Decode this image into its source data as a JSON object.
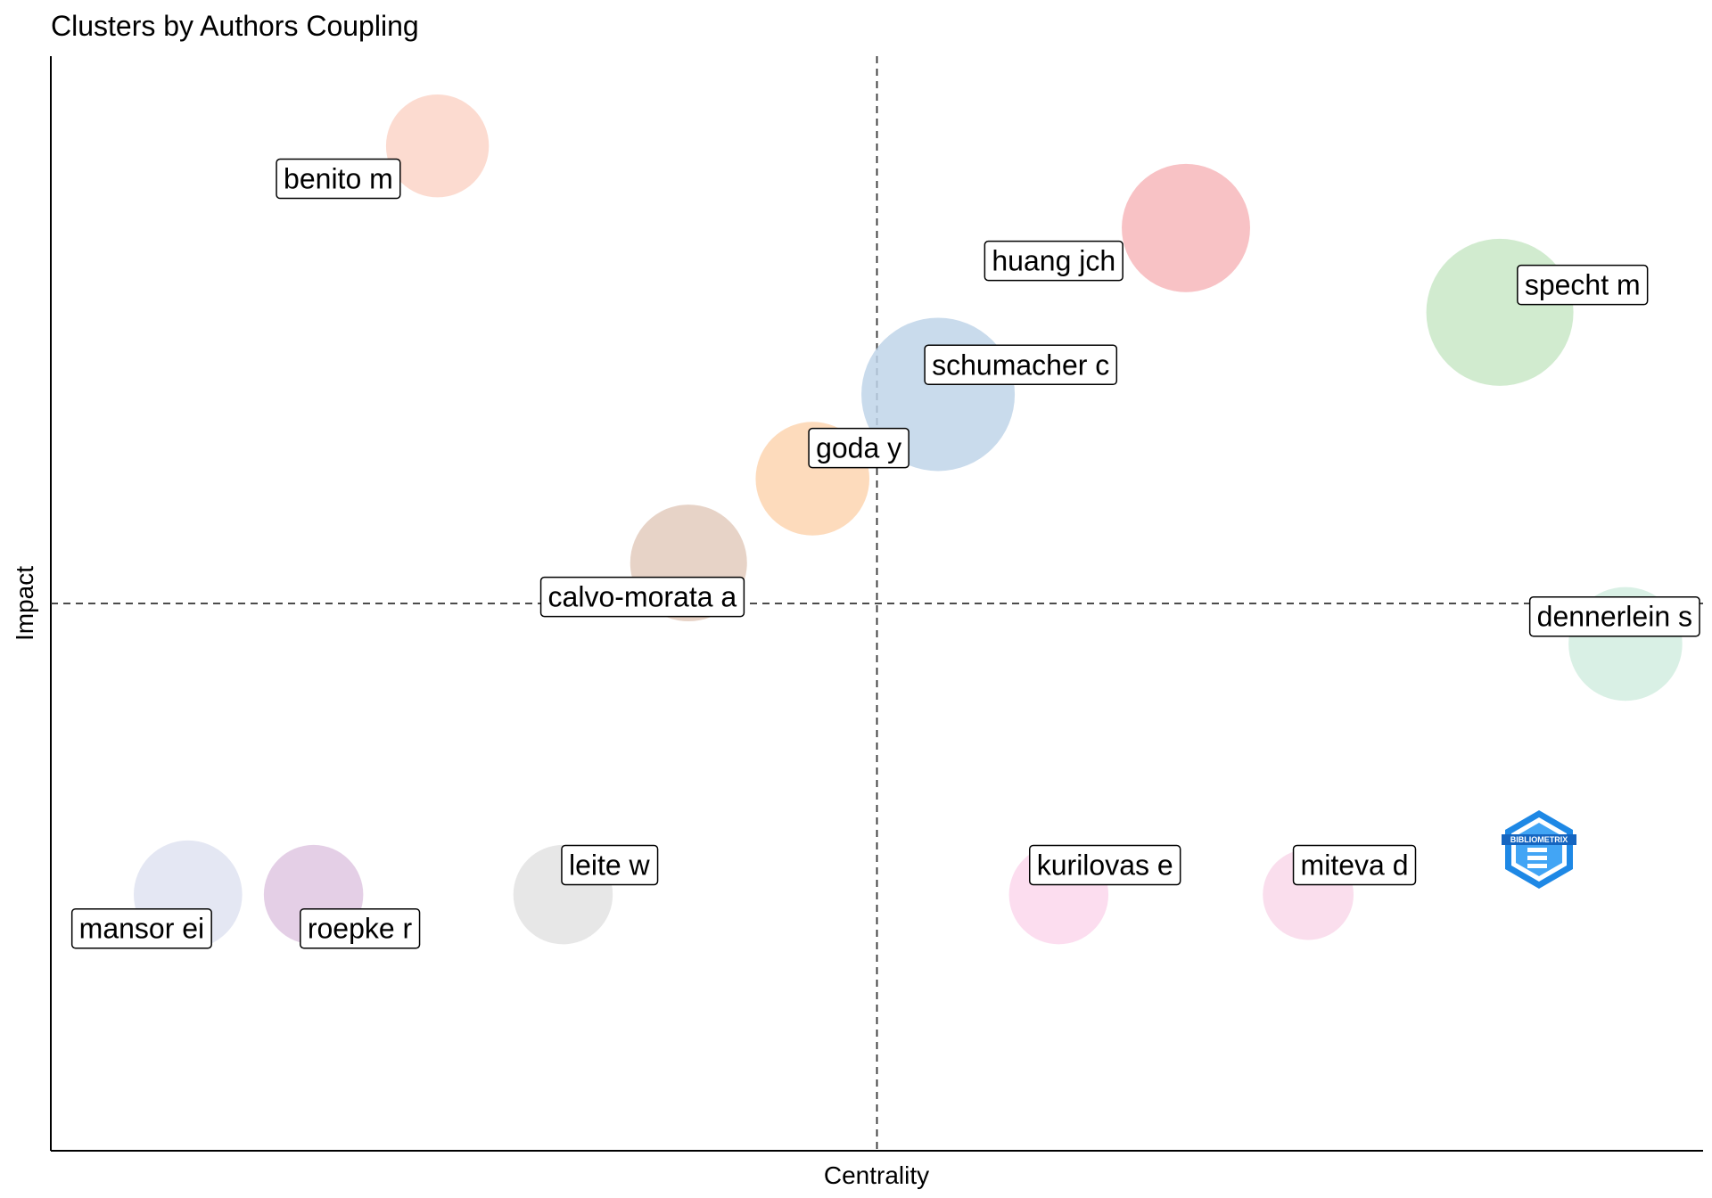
{
  "chart_data": {
    "type": "scatter",
    "title": "Clusters by Authors Coupling",
    "xlabel": "Centrality",
    "ylabel": "Impact",
    "grid": false,
    "legend": "none",
    "xlim": [
      0,
      1
    ],
    "ylim": [
      0,
      1
    ],
    "ref_x": 0.5,
    "ref_y": 0.5,
    "points": [
      {
        "label": "benito m",
        "x": 0.234,
        "y": 0.918,
        "size": 0.45,
        "color": "#fcd5c8",
        "label_dx": -0.06,
        "label_dy": -0.03
      },
      {
        "label": "huang jch",
        "x": 0.687,
        "y": 0.843,
        "size": 0.7,
        "color": "#f7b7bb",
        "label_dx": -0.08,
        "label_dy": -0.03
      },
      {
        "label": "specht m",
        "x": 0.877,
        "y": 0.766,
        "size": 0.92,
        "color": "#c9e7c7",
        "label_dx": 0.05,
        "label_dy": 0.025
      },
      {
        "label": "schumacher c",
        "x": 0.537,
        "y": 0.691,
        "size": 1.0,
        "color": "#bfd5e9",
        "label_dx": 0.05,
        "label_dy": 0.027
      },
      {
        "label": "goda y",
        "x": 0.461,
        "y": 0.614,
        "size": 0.55,
        "color": "#fdd5b0",
        "label_dx": 0.028,
        "label_dy": 0.028
      },
      {
        "label": "calvo-morata a",
        "x": 0.386,
        "y": 0.537,
        "size": 0.58,
        "color": "#e3cbbd",
        "label_dx": -0.028,
        "label_dy": -0.031
      },
      {
        "label": "dennerlein s",
        "x": 0.953,
        "y": 0.463,
        "size": 0.55,
        "color": "#d2ede0",
        "label_dx": 0.025,
        "label_dy": 0.025
      },
      {
        "label": "mansor ei",
        "x": 0.083,
        "y": 0.234,
        "size": 0.5,
        "color": "#dfe3f1",
        "label_dx": -0.028,
        "label_dy": -0.031
      },
      {
        "label": "roepke r",
        "x": 0.159,
        "y": 0.234,
        "size": 0.42,
        "color": "#dfc7e2",
        "label_dx": 0.028,
        "label_dy": -0.031
      },
      {
        "label": "leite w",
        "x": 0.31,
        "y": 0.234,
        "size": 0.42,
        "color": "#e3e3e3",
        "label_dx": 0.028,
        "label_dy": 0.027
      },
      {
        "label": "kurilovas e",
        "x": 0.61,
        "y": 0.234,
        "size": 0.42,
        "color": "#fcd7ec",
        "label_dx": 0.028,
        "label_dy": 0.027
      },
      {
        "label": "miteva d",
        "x": 0.761,
        "y": 0.234,
        "size": 0.35,
        "color": "#f9d8ea",
        "label_dx": 0.028,
        "label_dy": 0.027
      }
    ]
  },
  "logo": {
    "text": "BIBLIOMETRIX",
    "icon": "bibliometrix-logo-icon",
    "color": "#1e88e5"
  }
}
